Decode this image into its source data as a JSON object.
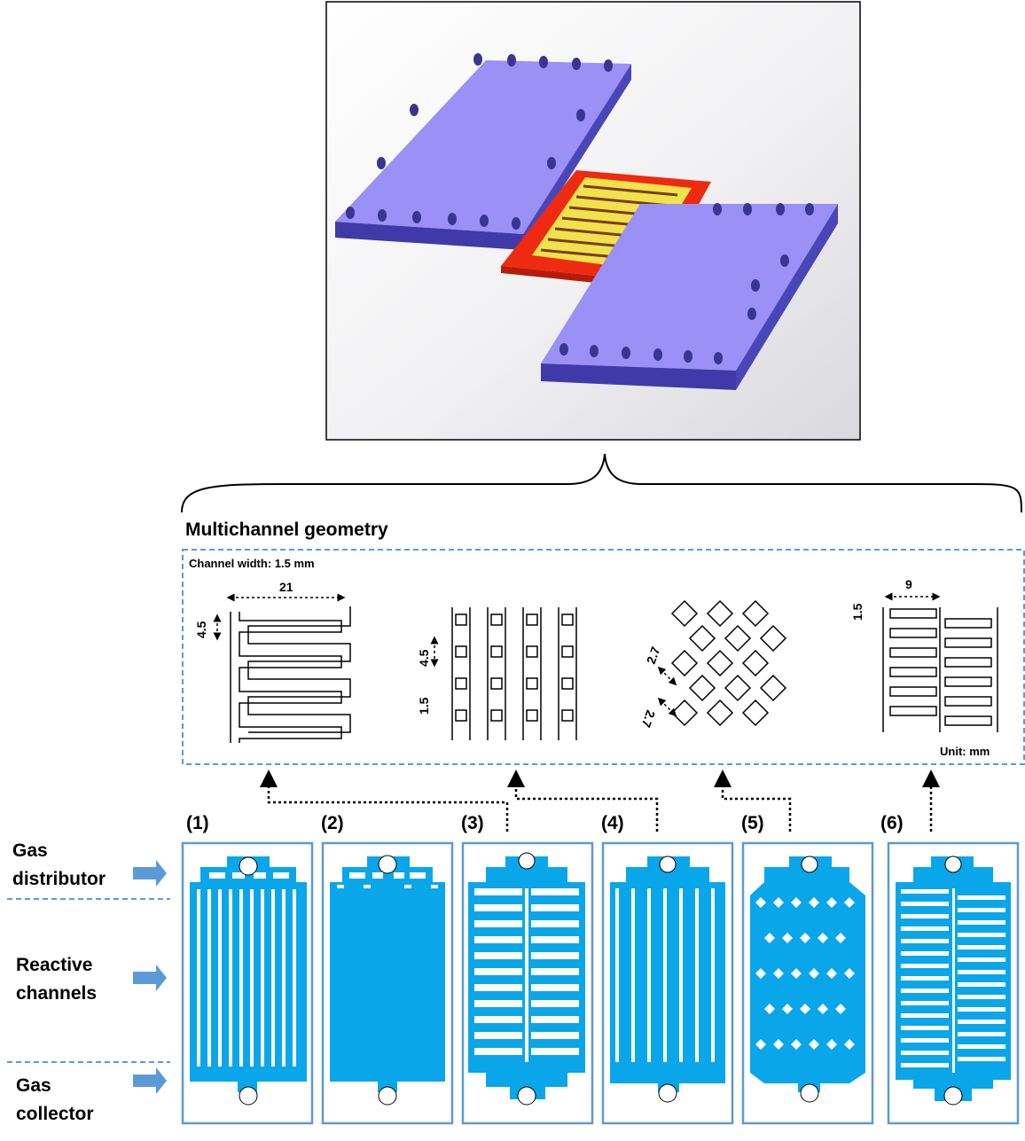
{
  "title": "Multichannel geometry",
  "channel_width": "Channel width: 1.5 mm",
  "unit": "Unit: mm",
  "dimensions": {
    "g1_length": "21",
    "g1_pitch": "4.5",
    "g2_pitch": "4.5",
    "g2_width": "1.5",
    "g3_a": "2.7",
    "g3_b": "2.7",
    "g4_length": "9",
    "g4_width": "1.5"
  },
  "row_labels": {
    "distributor_1": "Gas",
    "distributor_2": "distributor",
    "reactive_1": "Reactive",
    "reactive_2": "channels",
    "collector_1": "Gas",
    "collector_2": "collector"
  },
  "plates": [
    "(1)",
    "(2)",
    "(3)",
    "(4)",
    "(5)",
    "(6)"
  ],
  "colors": {
    "plate_blue": "#8e8ef5",
    "plate_side": "#5a55c8",
    "gasket_red": "#ee2a10",
    "channel_yellow": "#f0e24a",
    "channel_blue": "#0aa6ea",
    "frame_blue": "#5b9bd5",
    "arrow_blue": "#5b9bd5"
  }
}
